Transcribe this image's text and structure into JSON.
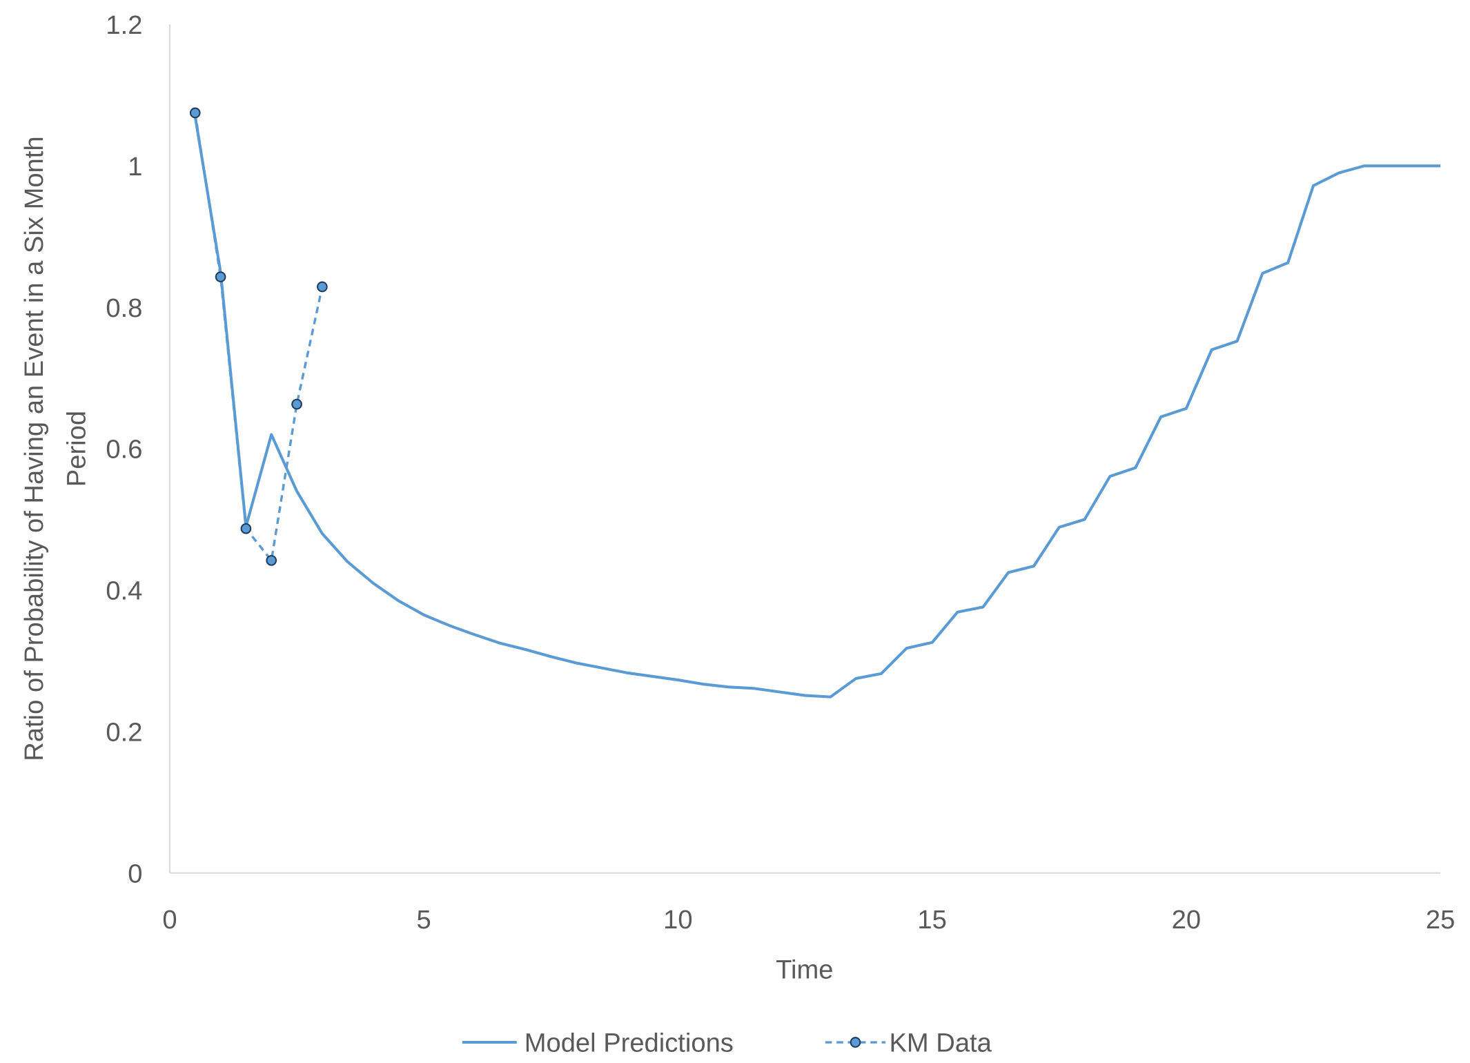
{
  "chart_data": {
    "type": "line",
    "title": "",
    "xlabel": "Time",
    "ylabel_lines": [
      "Ratio of Probability of Having an Event  in a Six Month",
      "Period"
    ],
    "xlim": [
      0,
      25
    ],
    "ylim": [
      0,
      1.2
    ],
    "xticks": [
      "0",
      "5",
      "10",
      "15",
      "20",
      "25"
    ],
    "yticks": [
      "0",
      "0.2",
      "0.4",
      "0.6",
      "0.8",
      "1",
      "1.2"
    ],
    "grid": false,
    "legend_position": "bottom",
    "colors": {
      "series": "#5B9BD5",
      "marker_edge": "#1F3B5A",
      "text": "#595959",
      "axis": "#D9D9D9"
    },
    "series": [
      {
        "name": "Model Predictions",
        "style": "solid",
        "x": [
          0.5,
          1,
          1.5,
          2,
          2.5,
          3,
          3.5,
          4,
          4.5,
          5,
          5.5,
          6,
          6.5,
          7,
          7.5,
          8,
          8.5,
          9,
          9.5,
          10,
          10.5,
          11,
          11.5,
          12,
          12.5,
          13,
          13.5,
          14,
          14.5,
          15,
          15.5,
          16,
          16.5,
          17,
          17.5,
          18,
          18.5,
          19,
          19.5,
          20,
          20.5,
          21,
          21.5,
          22,
          22.5,
          23,
          23.5,
          24,
          24.5,
          25
        ],
        "y": [
          1.07,
          0.85,
          0.49,
          0.62,
          0.54,
          0.48,
          0.44,
          0.41,
          0.385,
          0.365,
          0.35,
          0.337,
          0.325,
          0.316,
          0.306,
          0.297,
          0.29,
          0.283,
          0.278,
          0.273,
          0.267,
          0.263,
          0.261,
          0.256,
          0.251,
          0.249,
          0.275,
          0.282,
          0.318,
          0.326,
          0.369,
          0.376,
          0.425,
          0.434,
          0.489,
          0.5,
          0.561,
          0.573,
          0.645,
          0.657,
          0.74,
          0.752,
          0.848,
          0.863,
          0.972,
          0.99,
          1.0,
          1.0,
          1.0,
          1.0
        ]
      },
      {
        "name": "KM Data",
        "style": "dashed-markers",
        "x": [
          0.5,
          1,
          1.5,
          2,
          2.5,
          3
        ],
        "y": [
          1.075,
          0.843,
          0.487,
          0.442,
          0.663,
          0.829
        ]
      }
    ]
  }
}
